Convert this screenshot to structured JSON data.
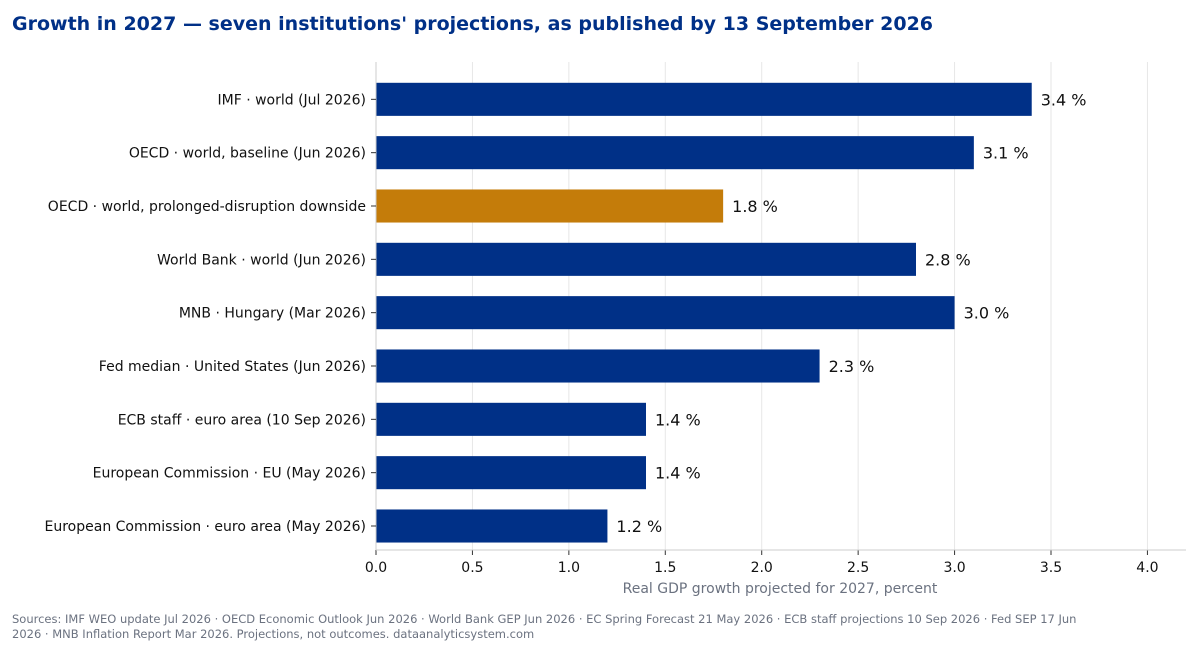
{
  "chart_data": {
    "type": "bar",
    "orientation": "horizontal",
    "title": "Growth in 2027 — seven institutions' projections, as published by 13 September 2026",
    "xlabel": "Real GDP growth projected for 2027, percent",
    "ylabel": "",
    "xlim": [
      0,
      4.2
    ],
    "xticks": [
      "0.0",
      "0.5",
      "1.0",
      "1.5",
      "2.0",
      "2.5",
      "3.0",
      "3.5",
      "4.0"
    ],
    "xtick_values": [
      0,
      0.5,
      1.0,
      1.5,
      2.0,
      2.5,
      3.0,
      3.5,
      4.0
    ],
    "grid": "vertical",
    "value_suffix": " %",
    "bars": [
      {
        "category": "IMF · world (Jul 2026)",
        "value": 3.4,
        "label": "3.4 %",
        "color": "#003087"
      },
      {
        "category": "OECD · world, baseline (Jun 2026)",
        "value": 3.1,
        "label": "3.1 %",
        "color": "#003087"
      },
      {
        "category": "OECD · world, prolonged-disruption downside",
        "value": 1.8,
        "label": "1.8 %",
        "color": "#c47c0a"
      },
      {
        "category": "World Bank · world (Jun 2026)",
        "value": 2.8,
        "label": "2.8 %",
        "color": "#003087"
      },
      {
        "category": "MNB · Hungary (Mar 2026)",
        "value": 3.0,
        "label": "3.0 %",
        "color": "#003087"
      },
      {
        "category": "Fed median · United States (Jun 2026)",
        "value": 2.3,
        "label": "2.3 %",
        "color": "#003087"
      },
      {
        "category": "ECB staff · euro area (10 Sep 2026)",
        "value": 1.4,
        "label": "1.4 %",
        "color": "#003087"
      },
      {
        "category": "European Commission · EU (May 2026)",
        "value": 1.4,
        "label": "1.4 %",
        "color": "#003087"
      },
      {
        "category": "European Commission · euro area (May 2026)",
        "value": 1.2,
        "label": "1.2 %",
        "color": "#003087"
      }
    ],
    "source": "Sources: IMF WEO update Jul 2026 · OECD Economic Outlook Jun 2026 · World Bank GEP Jun 2026 · EC Spring Forecast 21 May 2026 · ECB staff projections 10 Sep 2026 · Fed SEP 17 Jun 2026 · MNB Inflation Report Mar 2026. Projections, not outcomes. dataanalyticsystem.com"
  }
}
